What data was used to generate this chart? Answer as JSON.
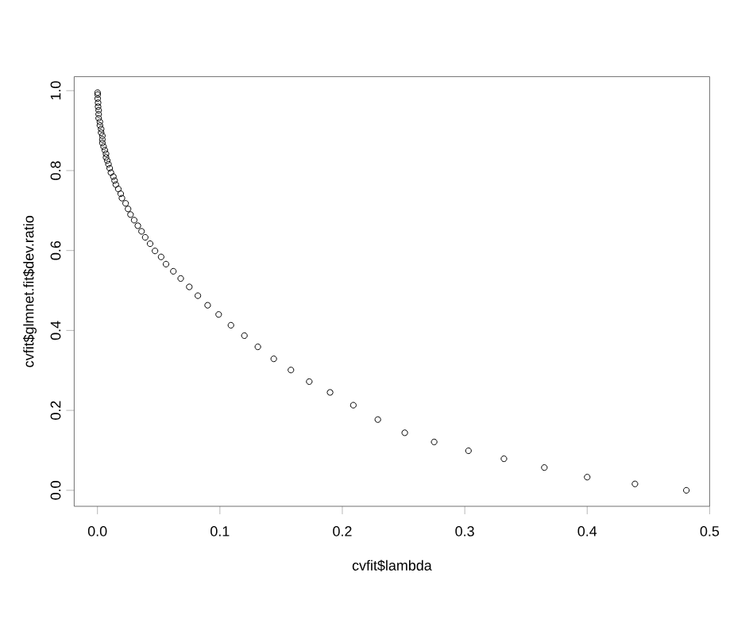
{
  "chart_data": {
    "type": "scatter",
    "xlabel": "cvfit$lambda",
    "ylabel": "cvfit$glmnet.fit$dev.ratio",
    "marker": "circle",
    "grid": false,
    "x": [
      0.481,
      0.439,
      0.4,
      0.365,
      0.332,
      0.303,
      0.275,
      0.251,
      0.229,
      0.209,
      0.19,
      0.173,
      0.158,
      0.144,
      0.131,
      0.12,
      0.109,
      0.099,
      0.09,
      0.082,
      0.075,
      0.068,
      0.062,
      0.056,
      0.052,
      0.047,
      0.043,
      0.039,
      0.036,
      0.033,
      0.03,
      0.027,
      0.025,
      0.023,
      0.02,
      0.019,
      0.017,
      0.015,
      0.014,
      0.013,
      0.011,
      0.01,
      0.009,
      0.008,
      0.007,
      0.007,
      0.006,
      0.005,
      0.004,
      0.004,
      0.004,
      0.003,
      0.003,
      0.002,
      0.002,
      0.001,
      0.001,
      0.001,
      0.0005,
      0.0005,
      0.0002,
      0.0002,
      0.0001
    ],
    "values": [
      0.0,
      0.016,
      0.033,
      0.057,
      0.079,
      0.099,
      0.121,
      0.144,
      0.177,
      0.213,
      0.245,
      0.272,
      0.301,
      0.329,
      0.359,
      0.387,
      0.413,
      0.44,
      0.463,
      0.487,
      0.509,
      0.53,
      0.548,
      0.566,
      0.584,
      0.599,
      0.617,
      0.633,
      0.648,
      0.662,
      0.676,
      0.69,
      0.704,
      0.718,
      0.731,
      0.742,
      0.754,
      0.765,
      0.775,
      0.785,
      0.795,
      0.806,
      0.816,
      0.825,
      0.833,
      0.842,
      0.851,
      0.86,
      0.869,
      0.878,
      0.887,
      0.895,
      0.904,
      0.913,
      0.922,
      0.931,
      0.941,
      0.951,
      0.96,
      0.97,
      0.98,
      0.99,
      0.995
    ],
    "color": "#000000",
    "xlim": [
      -0.019,
      0.5
    ],
    "ylim": [
      -0.04,
      1.035
    ],
    "xticks": [
      {
        "value": 0,
        "label": "0.0"
      },
      0.1,
      0.2,
      0.3,
      0.4,
      0.5
    ],
    "yticks": [
      {
        "value": 0,
        "label": "0.0"
      },
      0.2,
      0.4,
      0.6,
      0.8,
      {
        "value": 1,
        "label": "1.0"
      }
    ]
  }
}
